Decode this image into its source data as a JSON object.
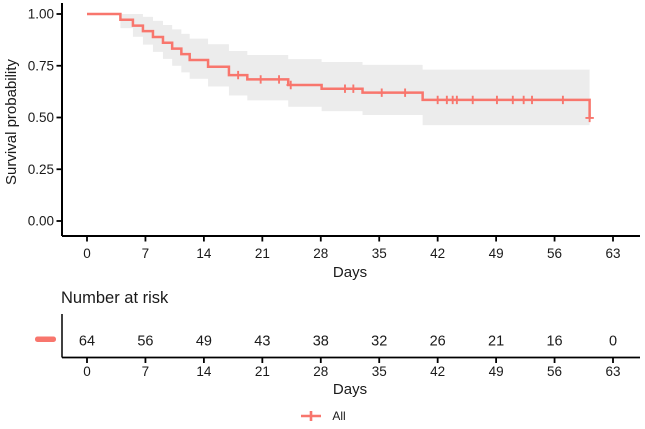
{
  "figure": {
    "background": "#ffffff",
    "text_color": "#1a1a1a",
    "axis_color": "#000000"
  },
  "chart_data": {
    "type": "line",
    "variant": "kaplan_meier_step",
    "title": "",
    "xlabel": "Days",
    "ylabel": "Survival probability",
    "xlim": [
      0,
      63
    ],
    "ylim": [
      0.0,
      1.0
    ],
    "x_ticks": [
      0,
      7,
      14,
      21,
      28,
      35,
      42,
      49,
      56,
      63
    ],
    "y_ticks": [
      1.0,
      0.75,
      0.5,
      0.25,
      0.0
    ],
    "grid": "off",
    "confidence_band": true,
    "legend_position": "bottom",
    "series": [
      {
        "name": "All",
        "color": "#F8766D",
        "ci_color": "#ECECEC",
        "steps": [
          {
            "time": 0.0,
            "survival": 1.0,
            "lower": 1.0,
            "upper": 1.0
          },
          {
            "time": 4.0,
            "survival": 0.972,
            "lower": 0.932,
            "upper": 1.0
          },
          {
            "time": 5.5,
            "survival": 0.944,
            "lower": 0.89,
            "upper": 1.0
          },
          {
            "time": 6.7,
            "survival": 0.917,
            "lower": 0.852,
            "upper": 0.986
          },
          {
            "time": 7.9,
            "survival": 0.889,
            "lower": 0.817,
            "upper": 0.967
          },
          {
            "time": 9.1,
            "survival": 0.861,
            "lower": 0.783,
            "upper": 0.947
          },
          {
            "time": 10.2,
            "survival": 0.833,
            "lower": 0.75,
            "upper": 0.926
          },
          {
            "time": 11.3,
            "survival": 0.806,
            "lower": 0.718,
            "upper": 0.904
          },
          {
            "time": 12.3,
            "survival": 0.778,
            "lower": 0.687,
            "upper": 0.881
          },
          {
            "time": 14.5,
            "survival": 0.745,
            "lower": 0.65,
            "upper": 0.854
          },
          {
            "time": 17.0,
            "survival": 0.705,
            "lower": 0.606,
            "upper": 0.821
          },
          {
            "time": 19.2,
            "survival": 0.684,
            "lower": 0.583,
            "upper": 0.802
          },
          {
            "time": 24.1,
            "survival": 0.657,
            "lower": 0.552,
            "upper": 0.782
          },
          {
            "time": 28.1,
            "survival": 0.639,
            "lower": 0.531,
            "upper": 0.768
          },
          {
            "time": 33.0,
            "survival": 0.62,
            "lower": 0.512,
            "upper": 0.754
          },
          {
            "time": 40.2,
            "survival": 0.585,
            "lower": 0.463,
            "upper": 0.731
          },
          {
            "time": 60.2,
            "survival": 0.498,
            "lower": null,
            "upper": null
          }
        ],
        "censor_times": [
          18.1,
          20.8,
          23.0,
          24.4,
          30.9,
          31.9,
          35.3,
          38.1,
          42.0,
          43.1,
          43.8,
          44.3,
          46.2,
          49.1,
          51.0,
          52.3,
          53.3,
          57.0,
          60.2
        ]
      }
    ],
    "number_at_risk": {
      "title": "Number at risk",
      "xlabel": "Days",
      "times": [
        0,
        7,
        14,
        21,
        28,
        35,
        42,
        49,
        56,
        63
      ],
      "groups": [
        {
          "name": "All",
          "color": "#F8766D",
          "counts": [
            64,
            56,
            49,
            43,
            38,
            32,
            26,
            21,
            16,
            0
          ]
        }
      ]
    }
  }
}
